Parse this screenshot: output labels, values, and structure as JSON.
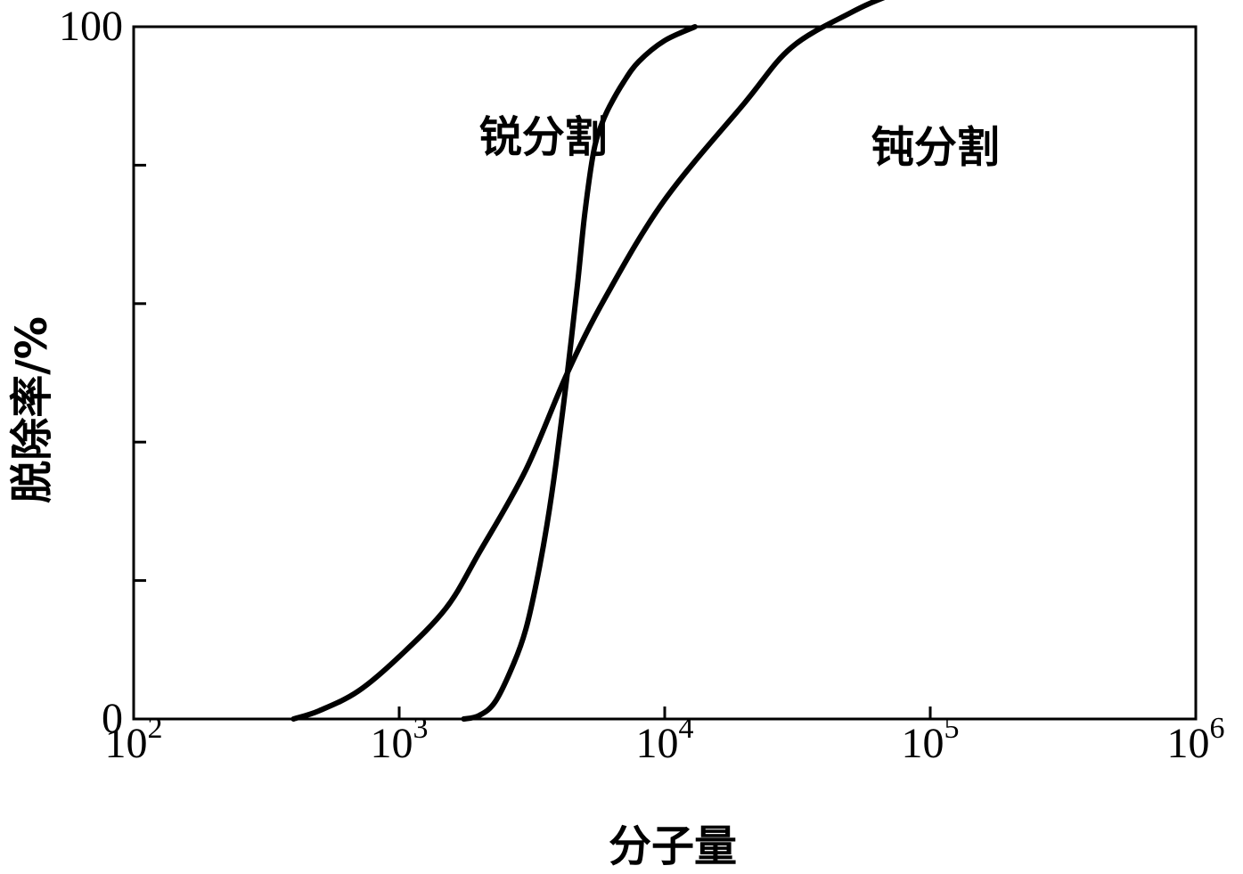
{
  "chart_data": {
    "type": "line",
    "xscale": "log",
    "xlim": [
      100,
      1000000
    ],
    "ylim": [
      0,
      100
    ],
    "xlabel": "分子量",
    "ylabel": "脱除率/%",
    "xticks": [
      {
        "value": 100,
        "base": "10",
        "exp": "2"
      },
      {
        "value": 1000,
        "base": "10",
        "exp": "3"
      },
      {
        "value": 10000,
        "base": "10",
        "exp": "4"
      },
      {
        "value": 100000,
        "base": "10",
        "exp": "5"
      },
      {
        "value": 1000000,
        "base": "10",
        "exp": "6"
      }
    ],
    "yticks": [
      0,
      20,
      40,
      60,
      80,
      100
    ],
    "ytick_labels": [
      {
        "value": 0,
        "label": "0"
      },
      {
        "value": 100,
        "label": "100"
      }
    ],
    "grid": false,
    "series": [
      {
        "name": "锐分割",
        "label_at": {
          "x": 2000,
          "y": 82
        },
        "points": [
          [
            1750,
            0
          ],
          [
            2000,
            0.5
          ],
          [
            2300,
            2.5
          ],
          [
            2700,
            8
          ],
          [
            3000,
            13
          ],
          [
            3300,
            20
          ],
          [
            3600,
            28
          ],
          [
            3900,
            37
          ],
          [
            4300,
            50
          ],
          [
            4700,
            63
          ],
          [
            5000,
            73
          ],
          [
            5400,
            82
          ],
          [
            5800,
            86
          ],
          [
            6200,
            88.5
          ],
          [
            7000,
            92
          ],
          [
            8000,
            95
          ],
          [
            10000,
            98
          ],
          [
            13000,
            100
          ]
        ]
      },
      {
        "name": "钝分割",
        "label_at": {
          "x": 60000,
          "y": 80.5
        },
        "points": [
          [
            400,
            0
          ],
          [
            500,
            1.2
          ],
          [
            700,
            4
          ],
          [
            1000,
            9
          ],
          [
            1500,
            16
          ],
          [
            2000,
            24
          ],
          [
            3000,
            36
          ],
          [
            4300,
            50
          ],
          [
            6000,
            61
          ],
          [
            10000,
            75
          ],
          [
            20000,
            89
          ],
          [
            30000,
            97
          ],
          [
            50000,
            102
          ],
          [
            70000,
            104.5
          ],
          [
            100000,
            106.5
          ],
          [
            140000,
            107
          ]
        ]
      }
    ]
  }
}
